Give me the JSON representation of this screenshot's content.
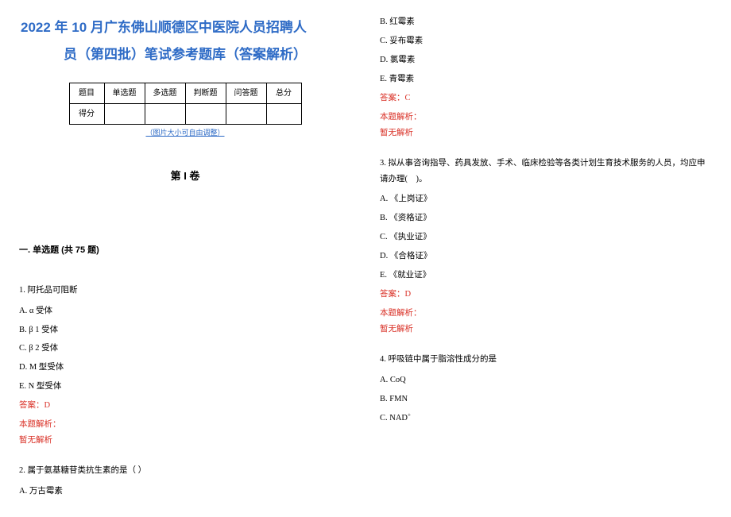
{
  "title": {
    "line1": "2022 年 10 月广东佛山顺德区中医院人员招聘人",
    "line2": "员（第四批）笔试参考题库（答案解析）"
  },
  "scoreTable": {
    "headers": [
      "题目",
      "单选题",
      "多选题",
      "判断题",
      "问答题",
      "总分"
    ],
    "rowLabel": "得分"
  },
  "resizeNote": "（图片大小可自由调整）",
  "volumeHeading": "第 I 卷",
  "sectionHeading": "一. 单选题 (共 75 题)",
  "answerLabel": "答案：",
  "explainLabel": "本题解析：",
  "noExplain": "暂无解析",
  "questions": [
    {
      "num": "1",
      "stem": "阿托品可阻断",
      "options": [
        "α 受体",
        "β 1 受体",
        "β 2 受体",
        "M 型受体",
        "N 型受体"
      ],
      "answer": "D"
    },
    {
      "num": "2",
      "stem": "属于氨基糖苷类抗生素的是（  ）",
      "options": [
        "万古霉素",
        "红霉素",
        "妥布霉素",
        "氯霉素",
        "青霉素"
      ],
      "answer": "C"
    },
    {
      "num": "3",
      "stem": "拟从事咨询指导、药具发放、手术、临床检验等各类计划生育技术服务的人员，均应申请办理(　)。",
      "options": [
        "《上岗证》",
        "《资格证》",
        "《执业证》",
        "《合格证》",
        "《就业证》"
      ],
      "answer": "D"
    },
    {
      "num": "4",
      "stem": "呼吸链中属于脂溶性成分的是",
      "options": [
        "CoQ",
        "FMN",
        "NAD"
      ],
      "sup": "+",
      "answer": ""
    }
  ],
  "optionLetters": [
    "A",
    "B",
    "C",
    "D",
    "E"
  ],
  "colors": {
    "titleColor": "#2e6bc6",
    "answerColor": "#d93026",
    "textColor": "#000000",
    "background": "#ffffff"
  }
}
